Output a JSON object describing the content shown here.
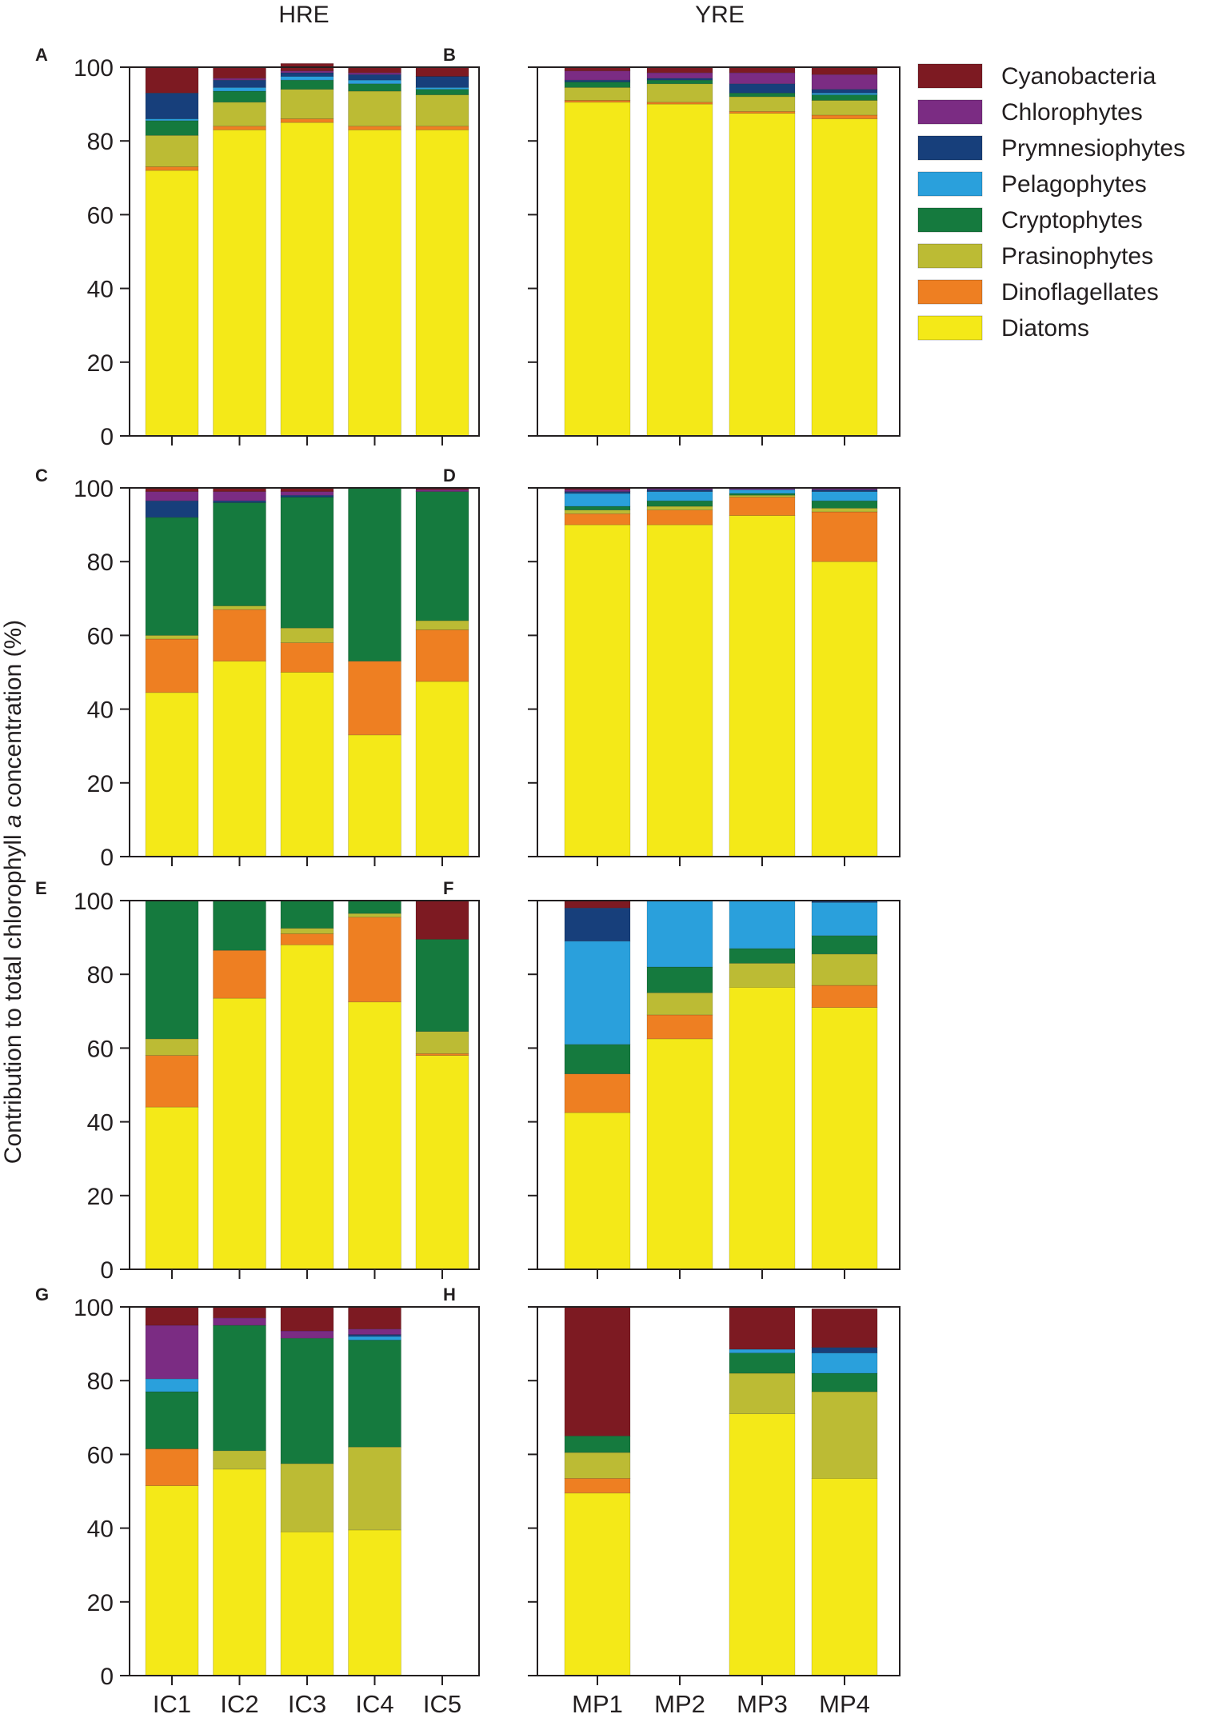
{
  "figure": {
    "ylabel_before": "Contribution to total chlorophyll ",
    "ylabel_italic": "a",
    "ylabel_after": " concentration (%)",
    "column_titles": [
      "HRE",
      "YRE"
    ]
  },
  "legend": [
    {
      "name": "Cyanobacteria",
      "color": "#7d1a22"
    },
    {
      "name": "Chlorophytes",
      "color": "#7b2c83"
    },
    {
      "name": "Prymnesiophytes",
      "color": "#173f7b"
    },
    {
      "name": "Pelagophytes",
      "color": "#2aa0dc"
    },
    {
      "name": "Cryptophytes",
      "color": "#157a3e"
    },
    {
      "name": "Prasinophytes",
      "color": "#bcbb34"
    },
    {
      "name": "Dinoflagellates",
      "color": "#ee7f22"
    },
    {
      "name": "Diatoms",
      "color": "#f4e918"
    }
  ],
  "chart_data": [
    {
      "panel": "A",
      "type": "bar",
      "stacked": true,
      "title": "HRE",
      "ylim": [
        0,
        100
      ],
      "yticks": [
        0,
        20,
        40,
        60,
        80,
        100
      ],
      "categories": [
        "IC1",
        "IC2",
        "IC3",
        "IC4",
        "IC5"
      ],
      "series": [
        {
          "name": "Diatoms",
          "values": [
            72,
            83,
            85,
            83,
            83
          ]
        },
        {
          "name": "Dinoflagellates",
          "values": [
            1,
            1,
            1,
            1,
            1
          ]
        },
        {
          "name": "Prasinophytes",
          "values": [
            8.5,
            6.5,
            8,
            9.5,
            8.5
          ]
        },
        {
          "name": "Cryptophytes",
          "values": [
            4,
            3,
            2.5,
            2,
            1.5
          ]
        },
        {
          "name": "Pelagophytes",
          "values": [
            0.5,
            1,
            1,
            1,
            0.5
          ]
        },
        {
          "name": "Prymnesiophytes",
          "values": [
            7,
            2,
            1,
            1.5,
            3
          ]
        },
        {
          "name": "Chlorophytes",
          "values": [
            0,
            0.5,
            0.5,
            0.5,
            0
          ]
        },
        {
          "name": "Cyanobacteria",
          "values": [
            7,
            3,
            2,
            1.5,
            2.5
          ]
        }
      ]
    },
    {
      "panel": "B",
      "type": "bar",
      "stacked": true,
      "title": "YRE",
      "ylim": [
        0,
        100
      ],
      "yticks": [
        0,
        20,
        40,
        60,
        80,
        100
      ],
      "categories": [
        "MP1",
        "MP2",
        "MP3",
        "MP4"
      ],
      "series": [
        {
          "name": "Diatoms",
          "values": [
            90.5,
            90,
            87.5,
            86
          ]
        },
        {
          "name": "Dinoflagellates",
          "values": [
            0.5,
            0.5,
            0.5,
            1
          ]
        },
        {
          "name": "Prasinophytes",
          "values": [
            3.5,
            5,
            4,
            4
          ]
        },
        {
          "name": "Cryptophytes",
          "values": [
            1.5,
            1,
            1,
            1.5
          ]
        },
        {
          "name": "Pelagophytes",
          "values": [
            0,
            0,
            0,
            0.5
          ]
        },
        {
          "name": "Prymnesiophytes",
          "values": [
            0.5,
            0.5,
            2.5,
            1
          ]
        },
        {
          "name": "Chlorophytes",
          "values": [
            2.5,
            1.5,
            3,
            4
          ]
        },
        {
          "name": "Cyanobacteria",
          "values": [
            1,
            1.5,
            1.5,
            2
          ]
        }
      ]
    },
    {
      "panel": "C",
      "type": "bar",
      "stacked": true,
      "ylim": [
        0,
        100
      ],
      "yticks": [
        0,
        20,
        40,
        60,
        80,
        100
      ],
      "categories": [
        "IC1",
        "IC2",
        "IC3",
        "IC4",
        "IC5"
      ],
      "series": [
        {
          "name": "Diatoms",
          "values": [
            44.5,
            53,
            50,
            33,
            47.5
          ]
        },
        {
          "name": "Dinoflagellates",
          "values": [
            14.5,
            14,
            8,
            20,
            14
          ]
        },
        {
          "name": "Prasinophytes",
          "values": [
            1,
            1,
            4,
            0,
            2.5
          ]
        },
        {
          "name": "Cryptophytes",
          "values": [
            32,
            28,
            35.5,
            47,
            35
          ]
        },
        {
          "name": "Pelagophytes",
          "values": [
            0,
            0,
            0,
            0,
            0
          ]
        },
        {
          "name": "Prymnesiophytes",
          "values": [
            4.5,
            0.5,
            0.5,
            0,
            0
          ]
        },
        {
          "name": "Chlorophytes",
          "values": [
            2.5,
            2.5,
            1,
            0,
            0.5
          ]
        },
        {
          "name": "Cyanobacteria",
          "values": [
            1,
            1,
            1,
            0,
            0.5
          ]
        }
      ]
    },
    {
      "panel": "D",
      "type": "bar",
      "stacked": true,
      "ylim": [
        0,
        100
      ],
      "yticks": [
        0,
        20,
        40,
        60,
        80,
        100
      ],
      "categories": [
        "MP1",
        "MP2",
        "MP3",
        "MP4"
      ],
      "series": [
        {
          "name": "Diatoms",
          "values": [
            90,
            90,
            92.5,
            80
          ]
        },
        {
          "name": "Dinoflagellates",
          "values": [
            3,
            4,
            5,
            13.5
          ]
        },
        {
          "name": "Prasinophytes",
          "values": [
            1,
            1,
            0.5,
            1
          ]
        },
        {
          "name": "Cryptophytes",
          "values": [
            1,
            1.5,
            0.5,
            2
          ]
        },
        {
          "name": "Pelagophytes",
          "values": [
            3.5,
            2.5,
            1,
            2.5
          ]
        },
        {
          "name": "Prymnesiophytes",
          "values": [
            0.5,
            0.5,
            0,
            0.5
          ]
        },
        {
          "name": "Chlorophytes",
          "values": [
            0.5,
            0.5,
            0.5,
            0.5
          ]
        },
        {
          "name": "Cyanobacteria",
          "values": [
            0.5,
            0,
            0,
            0
          ]
        }
      ]
    },
    {
      "panel": "E",
      "type": "bar",
      "stacked": true,
      "ylim": [
        0,
        100
      ],
      "yticks": [
        0,
        20,
        40,
        60,
        80,
        100
      ],
      "categories": [
        "IC1",
        "IC2",
        "IC3",
        "IC4",
        "IC5"
      ],
      "series": [
        {
          "name": "Diatoms",
          "values": [
            44,
            73.5,
            88,
            72.5,
            58
          ]
        },
        {
          "name": "Dinoflagellates",
          "values": [
            14,
            13,
            3,
            23,
            0.5
          ]
        },
        {
          "name": "Prasinophytes",
          "values": [
            4.5,
            0,
            1.5,
            1,
            6
          ]
        },
        {
          "name": "Cryptophytes",
          "values": [
            37.5,
            13.5,
            7.5,
            3.5,
            25
          ]
        },
        {
          "name": "Pelagophytes",
          "values": [
            0,
            0,
            0,
            0,
            0
          ]
        },
        {
          "name": "Prymnesiophytes",
          "values": [
            0,
            0,
            0,
            0,
            0
          ]
        },
        {
          "name": "Chlorophytes",
          "values": [
            0,
            0,
            0,
            0,
            0
          ]
        },
        {
          "name": "Cyanobacteria",
          "values": [
            0,
            0,
            0,
            0,
            10.5
          ]
        }
      ]
    },
    {
      "panel": "F",
      "type": "bar",
      "stacked": true,
      "ylim": [
        0,
        100
      ],
      "yticks": [
        0,
        20,
        40,
        60,
        80,
        100
      ],
      "categories": [
        "MP1",
        "MP2",
        "MP3",
        "MP4"
      ],
      "series": [
        {
          "name": "Diatoms",
          "values": [
            42.5,
            62.5,
            76.5,
            71
          ]
        },
        {
          "name": "Dinoflagellates",
          "values": [
            10.5,
            6.5,
            0,
            6
          ]
        },
        {
          "name": "Prasinophytes",
          "values": [
            0,
            6,
            6.5,
            8.5
          ]
        },
        {
          "name": "Cryptophytes",
          "values": [
            8,
            7,
            4,
            5
          ]
        },
        {
          "name": "Pelagophytes",
          "values": [
            28,
            18,
            13,
            9
          ]
        },
        {
          "name": "Prymnesiophytes",
          "values": [
            9,
            0,
            0,
            0.5
          ]
        },
        {
          "name": "Chlorophytes",
          "values": [
            0,
            0,
            0,
            0
          ]
        },
        {
          "name": "Cyanobacteria",
          "values": [
            2,
            0,
            0,
            0
          ]
        }
      ]
    },
    {
      "panel": "G",
      "type": "bar",
      "stacked": true,
      "ylim": [
        0,
        100
      ],
      "yticks": [
        0,
        20,
        40,
        60,
        80,
        100
      ],
      "categories": [
        "IC1",
        "IC2",
        "IC3",
        "IC4",
        "IC5"
      ],
      "xlabel_visible": true,
      "series": [
        {
          "name": "Diatoms",
          "values": [
            51.5,
            56,
            39,
            39.5,
            0
          ]
        },
        {
          "name": "Dinoflagellates",
          "values": [
            10,
            0,
            0,
            0,
            0
          ]
        },
        {
          "name": "Prasinophytes",
          "values": [
            0,
            5,
            18.5,
            22.5,
            0
          ]
        },
        {
          "name": "Cryptophytes",
          "values": [
            15.5,
            34,
            34,
            29,
            0
          ]
        },
        {
          "name": "Pelagophytes",
          "values": [
            3.5,
            0,
            0,
            1,
            0
          ]
        },
        {
          "name": "Prymnesiophytes",
          "values": [
            0,
            0,
            0,
            0.5,
            0
          ]
        },
        {
          "name": "Chlorophytes",
          "values": [
            14.5,
            2,
            2,
            1.5,
            0
          ]
        },
        {
          "name": "Cyanobacteria",
          "values": [
            5,
            3,
            6.5,
            6,
            0
          ]
        }
      ]
    },
    {
      "panel": "H",
      "type": "bar",
      "stacked": true,
      "ylim": [
        0,
        100
      ],
      "yticks": [
        0,
        20,
        40,
        60,
        80,
        100
      ],
      "categories": [
        "MP1",
        "MP2",
        "MP3",
        "MP4"
      ],
      "xlabel_visible": true,
      "series": [
        {
          "name": "Diatoms",
          "values": [
            49.5,
            0,
            71,
            53.5
          ]
        },
        {
          "name": "Dinoflagellates",
          "values": [
            4,
            0,
            0,
            0
          ]
        },
        {
          "name": "Prasinophytes",
          "values": [
            7,
            0,
            11,
            23.5
          ]
        },
        {
          "name": "Cryptophytes",
          "values": [
            4.5,
            0,
            5.5,
            5
          ]
        },
        {
          "name": "Pelagophytes",
          "values": [
            0,
            0,
            1,
            5.5
          ]
        },
        {
          "name": "Prymnesiophytes",
          "values": [
            0,
            0,
            0,
            1.5
          ]
        },
        {
          "name": "Chlorophytes",
          "values": [
            0,
            0,
            0,
            0
          ]
        },
        {
          "name": "Cyanobacteria",
          "values": [
            35,
            0,
            11.5,
            10.5
          ]
        }
      ]
    }
  ]
}
